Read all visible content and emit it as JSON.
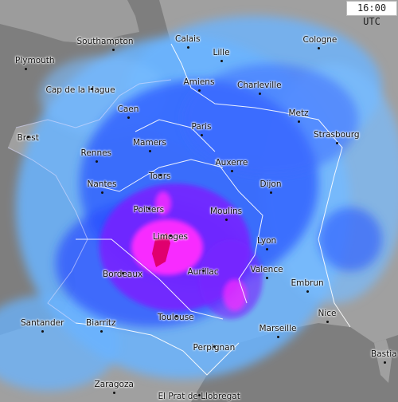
{
  "timestamp": "16:00 UTC",
  "colors": {
    "land": "#9a9a9a",
    "sea": "#7e7e7e",
    "rain_light": "#5aa8ff",
    "rain_moderate": "#2a4dff",
    "rain_heavy": "#7a22ff",
    "rain_intense": "#ff2aff",
    "rain_extreme": "#e0006e",
    "borders": "#ffffff"
  },
  "cities": [
    {
      "name": "Southampton"
    },
    {
      "name": "Calais"
    },
    {
      "name": "Cologne"
    },
    {
      "name": "Plymouth"
    },
    {
      "name": "Lille"
    },
    {
      "name": "Amiens"
    },
    {
      "name": "Charleville"
    },
    {
      "name": "Cap de la Hague"
    },
    {
      "name": "Caen"
    },
    {
      "name": "Metz"
    },
    {
      "name": "Paris"
    },
    {
      "name": "Brest"
    },
    {
      "name": "Strasbourg"
    },
    {
      "name": "Mamers"
    },
    {
      "name": "Rennes"
    },
    {
      "name": "Auxerre"
    },
    {
      "name": "Tours"
    },
    {
      "name": "Nantes"
    },
    {
      "name": "Dijon"
    },
    {
      "name": "Poitiers"
    },
    {
      "name": "Moulins"
    },
    {
      "name": "Limoges"
    },
    {
      "name": "Lyon"
    },
    {
      "name": "Bordeaux"
    },
    {
      "name": "Aurillac"
    },
    {
      "name": "Valence"
    },
    {
      "name": "Embrun"
    },
    {
      "name": "Nice"
    },
    {
      "name": "Toulouse"
    },
    {
      "name": "Santander"
    },
    {
      "name": "Biarritz"
    },
    {
      "name": "Marseille"
    },
    {
      "name": "Perpignan"
    },
    {
      "name": "Bastia"
    },
    {
      "name": "Zaragoza"
    },
    {
      "name": "El Prat de Llobregat"
    }
  ]
}
